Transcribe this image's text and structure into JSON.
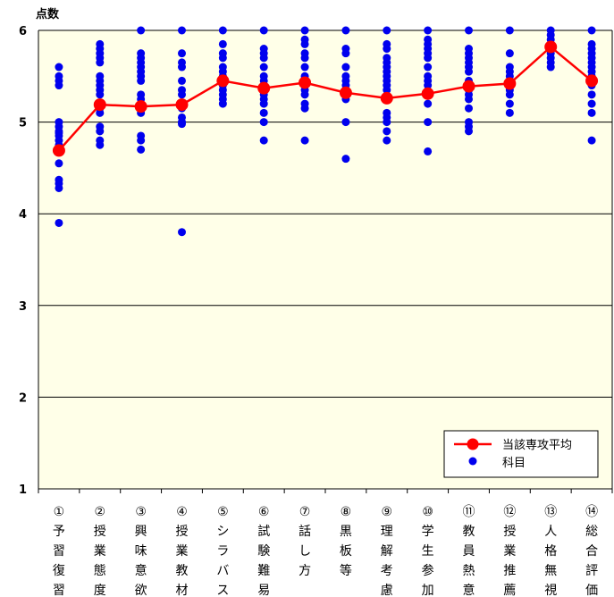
{
  "chart_data": {
    "type": "line",
    "ylabel": "点数",
    "ylim": [
      1,
      6
    ],
    "yticks": [
      "1",
      "2",
      "3",
      "4",
      "5",
      "6"
    ],
    "grid": true,
    "legend_position": "bottom-right",
    "categories": [
      "①予習復習",
      "②授業態度",
      "③興味意欲",
      "④授業教材",
      "⑤シラバス",
      "⑥試験難易",
      "⑦話し方",
      "⑧黒板等",
      "⑨理解考慮",
      "⑩学生参加",
      "⑪教員熱意",
      "⑫授業推薦",
      "⑬人格無視",
      "⑭総合評価"
    ],
    "category_labels": [
      [
        "①",
        "予",
        "習",
        "復",
        "習"
      ],
      [
        "②",
        "授",
        "業",
        "態",
        "度"
      ],
      [
        "③",
        "興",
        "味",
        "意",
        "欲"
      ],
      [
        "④",
        "授",
        "業",
        "教",
        "材"
      ],
      [
        "⑤",
        "シ",
        "ラ",
        "バ",
        "ス"
      ],
      [
        "⑥",
        "試",
        "験",
        "難",
        "易"
      ],
      [
        "⑦",
        "話",
        "し",
        "方"
      ],
      [
        "⑧",
        "黒",
        "板",
        "等"
      ],
      [
        "⑨",
        "理",
        "解",
        "考",
        "慮"
      ],
      [
        "⑩",
        "学",
        "生",
        "参",
        "加"
      ],
      [
        "⑪",
        "教",
        "員",
        "熱",
        "意"
      ],
      [
        "⑫",
        "授",
        "業",
        "推",
        "薦"
      ],
      [
        "⑬",
        "人",
        "格",
        "無",
        "視"
      ],
      [
        "⑭",
        "総",
        "合",
        "評",
        "価"
      ]
    ],
    "series": [
      {
        "name": "当該専攻平均",
        "type": "line",
        "color": "#ff0000",
        "values": [
          4.69,
          5.19,
          5.17,
          5.19,
          5.45,
          5.37,
          5.43,
          5.32,
          5.26,
          5.31,
          5.39,
          5.42,
          5.82,
          5.45
        ]
      },
      {
        "name": "科目",
        "type": "scatter",
        "color": "#0000ee",
        "values": [
          [
            5.6,
            5.5,
            5.45,
            5.4,
            5.0,
            4.95,
            4.9,
            4.88,
            4.85,
            4.8,
            4.75,
            4.55,
            4.37,
            4.33,
            4.28,
            3.9
          ],
          [
            5.85,
            5.8,
            5.75,
            5.7,
            5.65,
            5.5,
            5.45,
            5.4,
            5.35,
            5.3,
            5.2,
            5.15,
            5.1,
            4.95,
            4.9,
            4.8,
            4.75
          ],
          [
            6.0,
            5.75,
            5.7,
            5.65,
            5.6,
            5.55,
            5.5,
            5.45,
            5.3,
            5.25,
            5.2,
            5.15,
            5.1,
            4.85,
            4.8,
            4.7
          ],
          [
            6.0,
            5.75,
            5.65,
            5.6,
            5.45,
            5.35,
            5.3,
            5.2,
            5.15,
            5.05,
            5.0,
            4.98,
            3.8
          ],
          [
            6.0,
            5.85,
            5.75,
            5.7,
            5.6,
            5.55,
            5.5,
            5.45,
            5.4,
            5.35,
            5.3,
            5.25,
            5.2
          ],
          [
            6.0,
            5.8,
            5.75,
            5.7,
            5.6,
            5.5,
            5.45,
            5.4,
            5.3,
            5.25,
            5.2,
            5.1,
            5.0,
            4.8
          ],
          [
            6.0,
            5.9,
            5.85,
            5.75,
            5.7,
            5.6,
            5.5,
            5.45,
            5.4,
            5.35,
            5.3,
            5.2,
            5.15,
            4.8
          ],
          [
            6.0,
            5.8,
            5.75,
            5.6,
            5.5,
            5.45,
            5.4,
            5.35,
            5.25,
            5.0,
            4.6
          ],
          [
            6.0,
            5.85,
            5.8,
            5.7,
            5.65,
            5.6,
            5.55,
            5.5,
            5.45,
            5.4,
            5.35,
            5.25,
            5.1,
            5.05,
            5.0,
            4.9,
            4.8
          ],
          [
            6.0,
            5.9,
            5.85,
            5.8,
            5.75,
            5.7,
            5.6,
            5.5,
            5.45,
            5.4,
            5.3,
            5.2,
            5.0,
            4.68
          ],
          [
            6.0,
            5.8,
            5.75,
            5.7,
            5.65,
            5.6,
            5.55,
            5.45,
            5.35,
            5.3,
            5.25,
            5.15,
            5.0,
            4.95,
            4.9
          ],
          [
            6.0,
            5.75,
            5.6,
            5.55,
            5.5,
            5.45,
            5.4,
            5.35,
            5.3,
            5.2,
            5.1
          ],
          [
            6.0,
            5.95,
            5.9,
            5.85,
            5.8,
            5.75,
            5.7,
            5.65,
            5.6
          ],
          [
            6.0,
            5.85,
            5.8,
            5.75,
            5.7,
            5.65,
            5.6,
            5.55,
            5.5,
            5.4,
            5.3,
            5.2,
            5.1,
            4.8
          ]
        ]
      }
    ]
  }
}
